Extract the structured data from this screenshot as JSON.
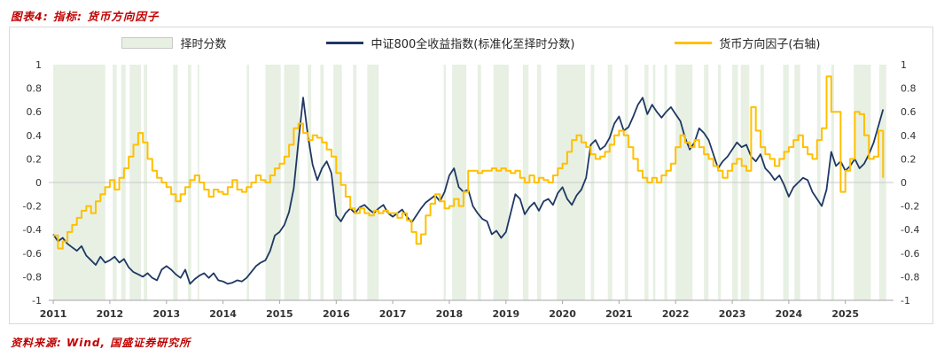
{
  "title": "图表4:  指标:  货币方向因子",
  "source": "资料来源:  Wind,  国盛证券研究所",
  "colors": {
    "accent_red": "#C00000",
    "navy": "#1F3864",
    "gold": "#FFC000",
    "band": "#E7F0E3",
    "border": "#D9D9D9",
    "zero_line": "#C9C9C9",
    "axis_line": "#A6A6A6"
  },
  "legend": [
    {
      "label": "择时分数",
      "type": "band"
    },
    {
      "label": "中证800全收益指数(标准化至择时分数)",
      "type": "line"
    },
    {
      "label": "货币方向因子(右轴)",
      "type": "line"
    }
  ],
  "chart_data": {
    "type": "line",
    "title": "指标: 货币方向因子",
    "xlabel": "",
    "ylabel": "",
    "ylim": [
      -1,
      1
    ],
    "x_range": [
      2010.92,
      2025.85
    ],
    "x_start": 2011.0,
    "x_step": 0.0833333,
    "y_ticks": [
      "1",
      "0.8",
      "0.6",
      "0.4",
      "0.2",
      "0",
      "-0.2",
      "-0.4",
      "-0.6",
      "-0.8",
      "-1"
    ],
    "x_ticks": [
      2011,
      2012,
      2013,
      2014,
      2015,
      2016,
      2017,
      2018,
      2019,
      2020,
      2021,
      2022,
      2023,
      2024,
      2025
    ],
    "legend_position": "top",
    "grid": false,
    "series": [
      {
        "name": "中证800全收益指数(标准化至择时分数)",
        "axis": "left",
        "style": "line",
        "color": "#1F3864",
        "width": 1.8,
        "values": [
          -0.44,
          -0.5,
          -0.47,
          -0.52,
          -0.55,
          -0.58,
          -0.54,
          -0.62,
          -0.66,
          -0.7,
          -0.63,
          -0.68,
          -0.66,
          -0.63,
          -0.68,
          -0.65,
          -0.72,
          -0.76,
          -0.78,
          -0.8,
          -0.77,
          -0.81,
          -0.83,
          -0.74,
          -0.71,
          -0.74,
          -0.78,
          -0.81,
          -0.74,
          -0.86,
          -0.82,
          -0.79,
          -0.77,
          -0.81,
          -0.77,
          -0.83,
          -0.84,
          -0.86,
          -0.85,
          -0.83,
          -0.84,
          -0.81,
          -0.76,
          -0.71,
          -0.68,
          -0.66,
          -0.58,
          -0.45,
          -0.42,
          -0.36,
          -0.25,
          -0.05,
          0.35,
          0.72,
          0.4,
          0.15,
          0.02,
          0.12,
          0.18,
          0.08,
          -0.28,
          -0.33,
          -0.26,
          -0.22,
          -0.26,
          -0.21,
          -0.19,
          -0.23,
          -0.26,
          -0.22,
          -0.19,
          -0.26,
          -0.29,
          -0.26,
          -0.23,
          -0.29,
          -0.34,
          -0.28,
          -0.22,
          -0.17,
          -0.14,
          -0.11,
          -0.16,
          -0.08,
          0.06,
          0.12,
          -0.04,
          -0.08,
          -0.06,
          -0.2,
          -0.26,
          -0.31,
          -0.33,
          -0.44,
          -0.41,
          -0.47,
          -0.42,
          -0.26,
          -0.1,
          -0.14,
          -0.27,
          -0.21,
          -0.17,
          -0.24,
          -0.16,
          -0.14,
          -0.19,
          -0.09,
          -0.04,
          -0.14,
          -0.19,
          -0.11,
          -0.06,
          0.04,
          0.32,
          0.36,
          0.28,
          0.31,
          0.38,
          0.5,
          0.56,
          0.44,
          0.47,
          0.56,
          0.66,
          0.72,
          0.58,
          0.66,
          0.6,
          0.55,
          0.6,
          0.64,
          0.58,
          0.52,
          0.38,
          0.28,
          0.34,
          0.46,
          0.42,
          0.36,
          0.24,
          0.12,
          0.18,
          0.22,
          0.28,
          0.34,
          0.3,
          0.32,
          0.22,
          0.18,
          0.24,
          0.12,
          0.08,
          0.02,
          0.06,
          -0.02,
          -0.12,
          -0.04,
          0.0,
          0.04,
          0.02,
          -0.08,
          -0.14,
          -0.2,
          -0.06,
          0.26,
          0.14,
          0.18,
          0.1,
          0.14,
          0.2,
          0.12,
          0.16,
          0.24,
          0.34,
          0.48,
          0.62
        ]
      },
      {
        "name": "货币方向因子(右轴)",
        "axis": "right",
        "style": "step",
        "color": "#FFC000",
        "width": 2,
        "values": [
          -0.45,
          -0.56,
          -0.5,
          -0.42,
          -0.36,
          -0.3,
          -0.24,
          -0.2,
          -0.26,
          -0.16,
          -0.1,
          -0.04,
          0.02,
          -0.06,
          0.04,
          0.12,
          0.22,
          0.32,
          0.42,
          0.34,
          0.2,
          0.1,
          0.04,
          0.0,
          -0.04,
          -0.1,
          -0.16,
          -0.1,
          -0.04,
          0.02,
          0.06,
          0.0,
          -0.06,
          -0.12,
          -0.06,
          -0.08,
          -0.1,
          -0.04,
          0.02,
          -0.06,
          -0.08,
          -0.04,
          0.0,
          0.06,
          0.02,
          0.0,
          0.06,
          0.12,
          0.16,
          0.22,
          0.32,
          0.46,
          0.5,
          0.42,
          0.36,
          0.4,
          0.38,
          0.34,
          0.28,
          0.22,
          0.08,
          -0.02,
          -0.12,
          -0.22,
          -0.26,
          -0.22,
          -0.26,
          -0.28,
          -0.24,
          -0.26,
          -0.24,
          -0.26,
          -0.26,
          -0.3,
          -0.26,
          -0.32,
          -0.42,
          -0.52,
          -0.44,
          -0.28,
          -0.18,
          -0.1,
          -0.16,
          -0.22,
          -0.2,
          -0.14,
          -0.2,
          -0.08,
          0.1,
          0.1,
          0.08,
          0.1,
          0.1,
          0.12,
          0.1,
          0.12,
          0.1,
          0.08,
          0.1,
          0.04,
          0.0,
          0.06,
          0.0,
          0.04,
          0.02,
          0.0,
          0.06,
          0.12,
          0.16,
          0.26,
          0.36,
          0.4,
          0.34,
          0.3,
          0.24,
          0.2,
          0.22,
          0.26,
          0.32,
          0.4,
          0.44,
          0.4,
          0.3,
          0.2,
          0.1,
          0.04,
          0.0,
          0.04,
          0.0,
          0.06,
          0.1,
          0.16,
          0.3,
          0.4,
          0.34,
          0.3,
          0.36,
          0.3,
          0.24,
          0.2,
          0.14,
          0.1,
          0.04,
          0.1,
          0.16,
          0.2,
          0.14,
          0.1,
          0.64,
          0.44,
          0.3,
          0.24,
          0.2,
          0.14,
          0.2,
          0.26,
          0.3,
          0.36,
          0.4,
          0.3,
          0.24,
          0.2,
          0.36,
          0.46,
          0.9,
          0.6,
          0.6,
          -0.08,
          0.1,
          0.2,
          0.6,
          0.58,
          0.4,
          0.2,
          0.22,
          0.44,
          0.04
        ]
      }
    ],
    "bands": {
      "name": "择时分数",
      "color": "#E7F0E3",
      "ranges": [
        [
          2011.0,
          2011.92
        ],
        [
          2012.05,
          2012.12
        ],
        [
          2012.2,
          2012.28
        ],
        [
          2012.35,
          2012.55
        ],
        [
          2012.6,
          2012.66
        ],
        [
          2013.12,
          2013.2
        ],
        [
          2013.38,
          2013.44
        ],
        [
          2013.55,
          2013.58
        ],
        [
          2014.42,
          2014.46
        ],
        [
          2014.75,
          2015.02
        ],
        [
          2015.08,
          2015.35
        ],
        [
          2015.5,
          2015.56
        ],
        [
          2015.72,
          2015.78
        ],
        [
          2015.95,
          2016.1
        ],
        [
          2016.3,
          2016.36
        ],
        [
          2016.55,
          2016.75
        ],
        [
          2017.9,
          2017.94
        ],
        [
          2018.05,
          2018.3
        ],
        [
          2018.5,
          2018.56
        ],
        [
          2018.78,
          2019.05
        ],
        [
          2019.3,
          2019.4
        ],
        [
          2019.55,
          2019.62
        ],
        [
          2019.9,
          2020.4
        ],
        [
          2020.5,
          2020.56
        ],
        [
          2020.8,
          2020.88
        ],
        [
          2021.1,
          2021.16
        ],
        [
          2021.45,
          2021.52
        ],
        [
          2021.6,
          2021.64
        ],
        [
          2021.8,
          2021.85
        ],
        [
          2022.0,
          2022.3
        ],
        [
          2022.5,
          2022.58
        ],
        [
          2022.75,
          2022.8
        ],
        [
          2023.0,
          2023.1
        ],
        [
          2023.15,
          2023.3
        ],
        [
          2023.5,
          2023.56
        ],
        [
          2023.9,
          2024.0
        ],
        [
          2024.1,
          2024.2
        ],
        [
          2024.5,
          2024.56
        ],
        [
          2024.75,
          2024.8
        ],
        [
          2025.15,
          2025.45
        ],
        [
          2025.6,
          2025.72
        ]
      ]
    }
  }
}
